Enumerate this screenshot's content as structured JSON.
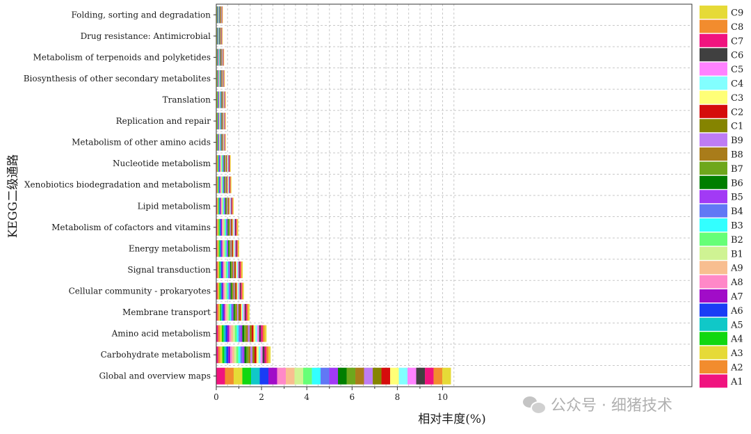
{
  "chart_data": {
    "type": "bar",
    "orientation": "horizontal",
    "stacked": true,
    "title": "",
    "xlabel": "相对丰度(%)",
    "ylabel": "KEGG二级通路",
    "xlim": [
      0,
      10.5
    ],
    "xticks": [
      "0",
      "2",
      "4",
      "6",
      "8",
      "10"
    ],
    "grid": true,
    "legend_position": "right",
    "categories": [
      "Folding, sorting and degradation",
      "Drug resistance: Antimicrobial",
      "Metabolism of terpenoids and polyketides",
      "Biosynthesis of other secondary metabolites",
      "Translation",
      "Replication and repair",
      "Metabolism of other amino acids",
      "Nucleotide metabolism",
      "Xenobiotics biodegradation and metabolism",
      "Lipid metabolism",
      "Metabolism of cofactors and vitamins",
      "Energy metabolism",
      "Signal transduction",
      "Cellular community - prokaryotes",
      "Membrane transport",
      "Amino acid metabolism",
      "Carbohydrate metabolism",
      "Global and overview maps"
    ],
    "totals": [
      0.28,
      0.27,
      0.34,
      0.37,
      0.42,
      0.42,
      0.42,
      0.64,
      0.67,
      0.77,
      0.97,
      1.01,
      1.17,
      1.22,
      1.47,
      2.22,
      2.4,
      10.37
    ],
    "series": [
      {
        "name": "A1",
        "color": "#F0137F"
      },
      {
        "name": "A2",
        "color": "#F28C2E"
      },
      {
        "name": "A3",
        "color": "#E6DA37"
      },
      {
        "name": "A4",
        "color": "#11D711"
      },
      {
        "name": "A5",
        "color": "#10C8C8"
      },
      {
        "name": "A6",
        "color": "#1A3DF5"
      },
      {
        "name": "A7",
        "color": "#A10CC8"
      },
      {
        "name": "A8",
        "color": "#FF88C8"
      },
      {
        "name": "A9",
        "color": "#F8BE90"
      },
      {
        "name": "B1",
        "color": "#CFF393"
      },
      {
        "name": "B2",
        "color": "#66FF77"
      },
      {
        "name": "B3",
        "color": "#33FFFF"
      },
      {
        "name": "B4",
        "color": "#6178F5"
      },
      {
        "name": "B5",
        "color": "#A23AF5"
      },
      {
        "name": "B6",
        "color": "#007E00"
      },
      {
        "name": "B7",
        "color": "#6EA71C"
      },
      {
        "name": "B8",
        "color": "#A97C1A"
      },
      {
        "name": "B9",
        "color": "#BE7CF4"
      },
      {
        "name": "C1",
        "color": "#858400"
      },
      {
        "name": "C2",
        "color": "#D50C0C"
      },
      {
        "name": "C3",
        "color": "#FFFF77"
      },
      {
        "name": "C4",
        "color": "#82FFFF"
      },
      {
        "name": "C5",
        "color": "#FF82FF"
      },
      {
        "name": "C6",
        "color": "#404040"
      },
      {
        "name": "C7",
        "color": "#F0137F"
      },
      {
        "name": "C8",
        "color": "#F28C2E"
      },
      {
        "name": "C9",
        "color": "#E6DA37"
      }
    ],
    "legend_order": [
      "C9",
      "C8",
      "C7",
      "C6",
      "C5",
      "C4",
      "C3",
      "C2",
      "C1",
      "B9",
      "B8",
      "B7",
      "B6",
      "B5",
      "B4",
      "B3",
      "B2",
      "B1",
      "A9",
      "A8",
      "A7",
      "A6",
      "A5",
      "A4",
      "A3",
      "A2",
      "A1"
    ]
  },
  "watermark": {
    "text": "公众号 · 细猪技术",
    "icon": "wechat-icon"
  }
}
